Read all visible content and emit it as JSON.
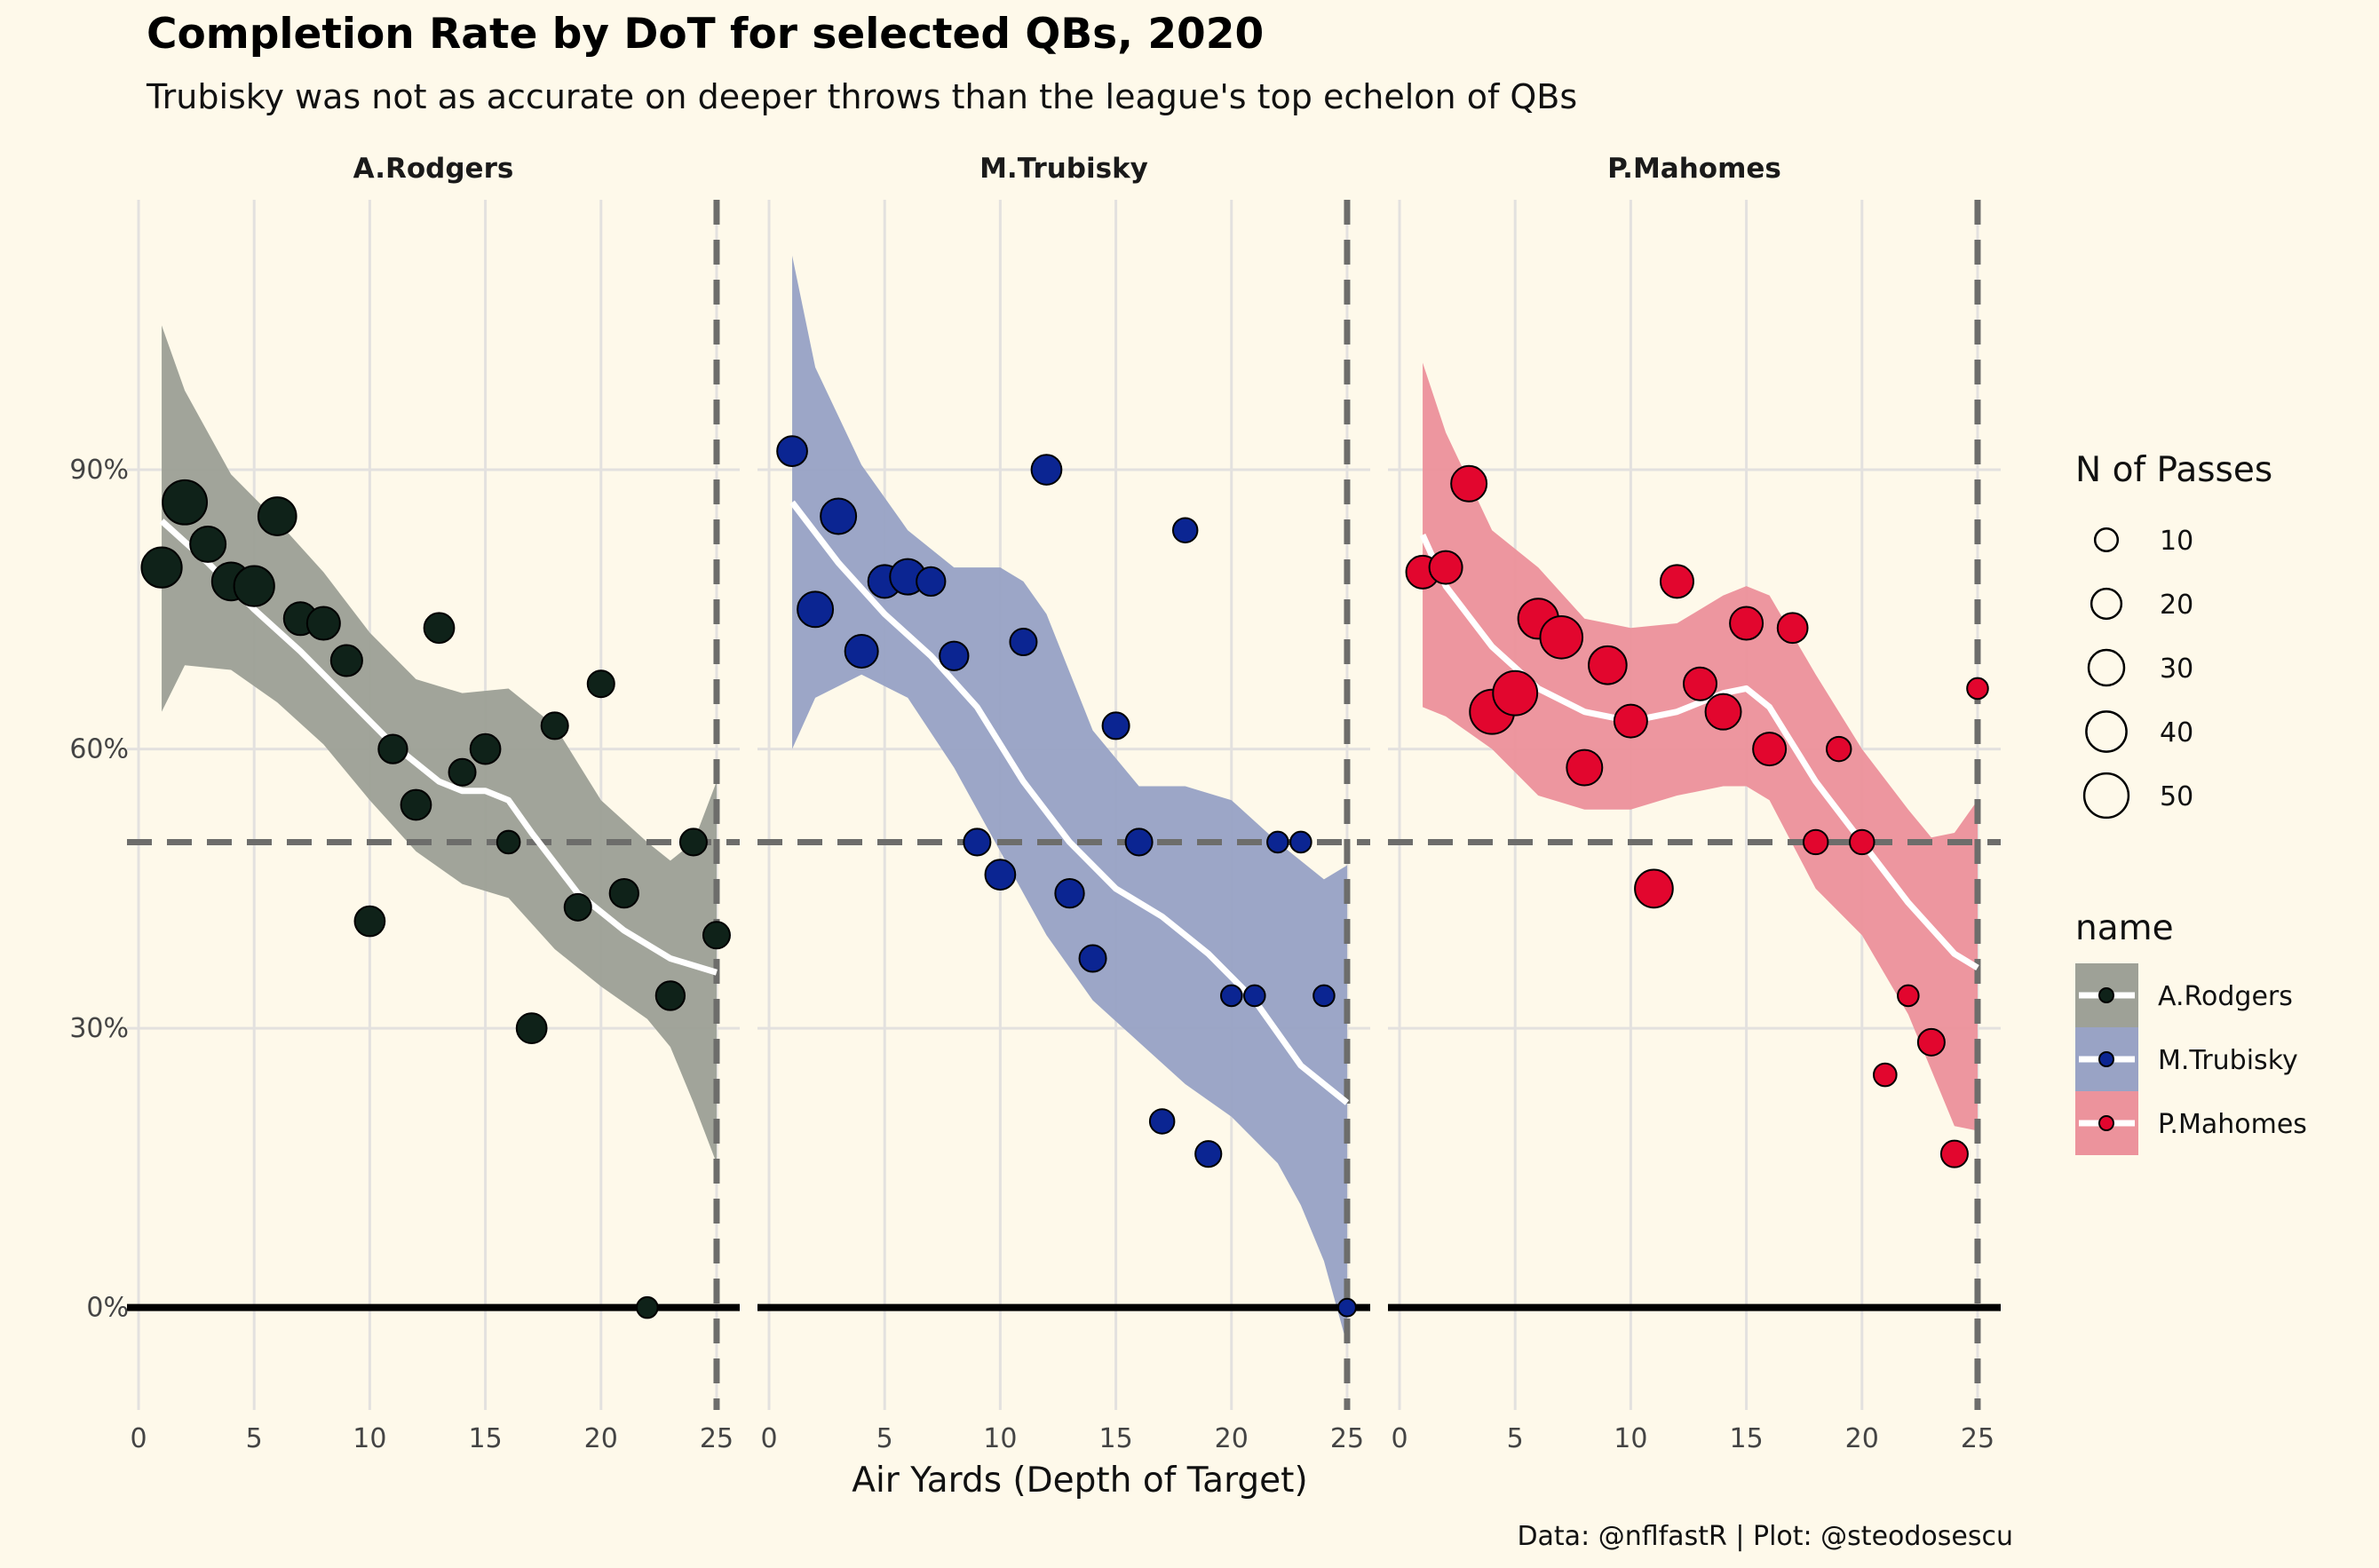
{
  "chart_data": {
    "type": "scatter",
    "title": "Completion Rate by DoT for selected QBs, 2020",
    "subtitle": "Trubisky was not as accurate on deeper throws than the league's top echelon of QBs",
    "xlabel": "Air Yards (Depth of Target)",
    "ylabel": "",
    "caption": "Data: @nflfastR | Plot: @steodosescu",
    "xlim": [
      -0.5,
      26
    ],
    "ylim": [
      -0.11,
      1.19
    ],
    "x_ticks": [
      0,
      5,
      10,
      15,
      20,
      25
    ],
    "x_tick_labels": [
      "0",
      "5",
      "10",
      "15",
      "20",
      "25"
    ],
    "y_ticks": [
      0,
      0.3,
      0.6,
      0.9
    ],
    "y_tick_labels": [
      "0%",
      "30%",
      "60%",
      "90%"
    ],
    "reference_lines": {
      "horizontal": 0.5,
      "vertical": 25,
      "baseline": 0
    },
    "grid": true,
    "size_legend": {
      "title": "N of Passes",
      "values": [
        10,
        20,
        30,
        40,
        50
      ],
      "labels": [
        "10",
        "20",
        "30",
        "40",
        "50"
      ]
    },
    "color_legend": {
      "title": "name",
      "entries": [
        "A.Rodgers",
        "M.Trubisky",
        "P.Mahomes"
      ]
    },
    "series": [
      {
        "name": "A.Rodgers",
        "fill": "#0f2219",
        "band_color": "#9ea197",
        "points": [
          {
            "x": 1,
            "y": 0.795,
            "n": 40
          },
          {
            "x": 2,
            "y": 0.865,
            "n": 50
          },
          {
            "x": 3,
            "y": 0.82,
            "n": 30
          },
          {
            "x": 4,
            "y": 0.78,
            "n": 35
          },
          {
            "x": 5,
            "y": 0.775,
            "n": 40
          },
          {
            "x": 6,
            "y": 0.85,
            "n": 35
          },
          {
            "x": 7,
            "y": 0.74,
            "n": 25
          },
          {
            "x": 8,
            "y": 0.735,
            "n": 25
          },
          {
            "x": 9,
            "y": 0.695,
            "n": 22
          },
          {
            "x": 10,
            "y": 0.415,
            "n": 20
          },
          {
            "x": 11,
            "y": 0.6,
            "n": 18
          },
          {
            "x": 12,
            "y": 0.54,
            "n": 20
          },
          {
            "x": 13,
            "y": 0.73,
            "n": 20
          },
          {
            "x": 14,
            "y": 0.575,
            "n": 15
          },
          {
            "x": 15,
            "y": 0.6,
            "n": 20
          },
          {
            "x": 16,
            "y": 0.5,
            "n": 10
          },
          {
            "x": 17,
            "y": 0.3,
            "n": 20
          },
          {
            "x": 18,
            "y": 0.625,
            "n": 15
          },
          {
            "x": 19,
            "y": 0.43,
            "n": 15
          },
          {
            "x": 20,
            "y": 0.67,
            "n": 15
          },
          {
            "x": 21,
            "y": 0.445,
            "n": 18
          },
          {
            "x": 22,
            "y": 0.0,
            "n": 8
          },
          {
            "x": 23,
            "y": 0.335,
            "n": 18
          },
          {
            "x": 24,
            "y": 0.5,
            "n": 15
          },
          {
            "x": 25,
            "y": 0.4,
            "n": 15
          }
        ],
        "smooth": [
          {
            "x": 1,
            "y": 0.845
          },
          {
            "x": 3,
            "y": 0.8
          },
          {
            "x": 5,
            "y": 0.75
          },
          {
            "x": 7,
            "y": 0.705
          },
          {
            "x": 9,
            "y": 0.655
          },
          {
            "x": 11,
            "y": 0.605
          },
          {
            "x": 13,
            "y": 0.565
          },
          {
            "x": 14,
            "y": 0.555
          },
          {
            "x": 15,
            "y": 0.555
          },
          {
            "x": 16,
            "y": 0.545
          },
          {
            "x": 17,
            "y": 0.51
          },
          {
            "x": 19,
            "y": 0.445
          },
          {
            "x": 21,
            "y": 0.405
          },
          {
            "x": 23,
            "y": 0.375
          },
          {
            "x": 25,
            "y": 0.36
          }
        ],
        "band_upper": [
          {
            "x": 1,
            "y": 1.055
          },
          {
            "x": 2,
            "y": 0.985
          },
          {
            "x": 4,
            "y": 0.895
          },
          {
            "x": 6,
            "y": 0.845
          },
          {
            "x": 8,
            "y": 0.79
          },
          {
            "x": 10,
            "y": 0.725
          },
          {
            "x": 12,
            "y": 0.675
          },
          {
            "x": 14,
            "y": 0.66
          },
          {
            "x": 16,
            "y": 0.665
          },
          {
            "x": 18,
            "y": 0.625
          },
          {
            "x": 20,
            "y": 0.545
          },
          {
            "x": 22,
            "y": 0.5
          },
          {
            "x": 23,
            "y": 0.48
          },
          {
            "x": 24,
            "y": 0.5
          },
          {
            "x": 25,
            "y": 0.565
          }
        ],
        "band_lower": [
          {
            "x": 1,
            "y": 0.64
          },
          {
            "x": 2,
            "y": 0.69
          },
          {
            "x": 4,
            "y": 0.685
          },
          {
            "x": 6,
            "y": 0.65
          },
          {
            "x": 8,
            "y": 0.605
          },
          {
            "x": 10,
            "y": 0.545
          },
          {
            "x": 12,
            "y": 0.49
          },
          {
            "x": 14,
            "y": 0.455
          },
          {
            "x": 16,
            "y": 0.44
          },
          {
            "x": 18,
            "y": 0.385
          },
          {
            "x": 20,
            "y": 0.345
          },
          {
            "x": 22,
            "y": 0.31
          },
          {
            "x": 23,
            "y": 0.28
          },
          {
            "x": 24,
            "y": 0.22
          },
          {
            "x": 25,
            "y": 0.155
          }
        ]
      },
      {
        "name": "M.Trubisky",
        "fill": "#0b2592",
        "band_color": "#99a3c5",
        "points": [
          {
            "x": 1,
            "y": 0.92,
            "n": 20
          },
          {
            "x": 2,
            "y": 0.75,
            "n": 30
          },
          {
            "x": 3,
            "y": 0.85,
            "n": 30
          },
          {
            "x": 4,
            "y": 0.705,
            "n": 25
          },
          {
            "x": 5,
            "y": 0.78,
            "n": 25
          },
          {
            "x": 6,
            "y": 0.785,
            "n": 30
          },
          {
            "x": 7,
            "y": 0.78,
            "n": 18
          },
          {
            "x": 8,
            "y": 0.7,
            "n": 18
          },
          {
            "x": 9,
            "y": 0.5,
            "n": 15
          },
          {
            "x": 10,
            "y": 0.465,
            "n": 20
          },
          {
            "x": 11,
            "y": 0.715,
            "n": 15
          },
          {
            "x": 12,
            "y": 0.9,
            "n": 20
          },
          {
            "x": 13,
            "y": 0.445,
            "n": 18
          },
          {
            "x": 14,
            "y": 0.375,
            "n": 15
          },
          {
            "x": 15,
            "y": 0.625,
            "n": 15
          },
          {
            "x": 16,
            "y": 0.5,
            "n": 15
          },
          {
            "x": 17,
            "y": 0.2,
            "n": 12
          },
          {
            "x": 18,
            "y": 0.835,
            "n": 12
          },
          {
            "x": 19,
            "y": 0.165,
            "n": 14
          },
          {
            "x": 20,
            "y": 0.335,
            "n": 8
          },
          {
            "x": 21,
            "y": 0.335,
            "n": 8
          },
          {
            "x": 22,
            "y": 0.5,
            "n": 8
          },
          {
            "x": 23,
            "y": 0.5,
            "n": 8
          },
          {
            "x": 24,
            "y": 0.335,
            "n": 8
          },
          {
            "x": 25,
            "y": 0.0,
            "n": 5
          }
        ],
        "smooth": [
          {
            "x": 1,
            "y": 0.865
          },
          {
            "x": 3,
            "y": 0.8
          },
          {
            "x": 5,
            "y": 0.745
          },
          {
            "x": 7,
            "y": 0.7
          },
          {
            "x": 9,
            "y": 0.645
          },
          {
            "x": 11,
            "y": 0.565
          },
          {
            "x": 13,
            "y": 0.5
          },
          {
            "x": 15,
            "y": 0.45
          },
          {
            "x": 17,
            "y": 0.42
          },
          {
            "x": 19,
            "y": 0.38
          },
          {
            "x": 21,
            "y": 0.33
          },
          {
            "x": 23,
            "y": 0.26
          },
          {
            "x": 25,
            "y": 0.22
          }
        ],
        "band_upper": [
          {
            "x": 1,
            "y": 1.13
          },
          {
            "x": 2,
            "y": 1.01
          },
          {
            "x": 4,
            "y": 0.905
          },
          {
            "x": 6,
            "y": 0.835
          },
          {
            "x": 8,
            "y": 0.795
          },
          {
            "x": 10,
            "y": 0.795
          },
          {
            "x": 11,
            "y": 0.78
          },
          {
            "x": 12,
            "y": 0.745
          },
          {
            "x": 14,
            "y": 0.62
          },
          {
            "x": 16,
            "y": 0.56
          },
          {
            "x": 18,
            "y": 0.56
          },
          {
            "x": 20,
            "y": 0.545
          },
          {
            "x": 22,
            "y": 0.5
          },
          {
            "x": 24,
            "y": 0.46
          },
          {
            "x": 25,
            "y": 0.475
          }
        ],
        "band_lower": [
          {
            "x": 1,
            "y": 0.6
          },
          {
            "x": 2,
            "y": 0.655
          },
          {
            "x": 4,
            "y": 0.68
          },
          {
            "x": 6,
            "y": 0.655
          },
          {
            "x": 8,
            "y": 0.58
          },
          {
            "x": 10,
            "y": 0.49
          },
          {
            "x": 12,
            "y": 0.4
          },
          {
            "x": 14,
            "y": 0.33
          },
          {
            "x": 16,
            "y": 0.285
          },
          {
            "x": 18,
            "y": 0.24
          },
          {
            "x": 20,
            "y": 0.205
          },
          {
            "x": 22,
            "y": 0.155
          },
          {
            "x": 23,
            "y": 0.11
          },
          {
            "x": 24,
            "y": 0.05
          },
          {
            "x": 25,
            "y": -0.04
          }
        ]
      },
      {
        "name": "P.Mahomes",
        "fill": "#e2062e",
        "band_color": "#ec939c",
        "points": [
          {
            "x": 1,
            "y": 0.79,
            "n": 25
          },
          {
            "x": 2,
            "y": 0.795,
            "n": 25
          },
          {
            "x": 3,
            "y": 0.885,
            "n": 30
          },
          {
            "x": 4,
            "y": 0.64,
            "n": 50
          },
          {
            "x": 5,
            "y": 0.66,
            "n": 50
          },
          {
            "x": 6,
            "y": 0.74,
            "n": 40
          },
          {
            "x": 7,
            "y": 0.72,
            "n": 45
          },
          {
            "x": 8,
            "y": 0.58,
            "n": 30
          },
          {
            "x": 9,
            "y": 0.69,
            "n": 35
          },
          {
            "x": 10,
            "y": 0.63,
            "n": 25
          },
          {
            "x": 11,
            "y": 0.45,
            "n": 35
          },
          {
            "x": 12,
            "y": 0.78,
            "n": 25
          },
          {
            "x": 13,
            "y": 0.67,
            "n": 25
          },
          {
            "x": 14,
            "y": 0.64,
            "n": 30
          },
          {
            "x": 15,
            "y": 0.735,
            "n": 25
          },
          {
            "x": 16,
            "y": 0.6,
            "n": 25
          },
          {
            "x": 17,
            "y": 0.73,
            "n": 20
          },
          {
            "x": 18,
            "y": 0.5,
            "n": 12
          },
          {
            "x": 19,
            "y": 0.6,
            "n": 12
          },
          {
            "x": 20,
            "y": 0.5,
            "n": 12
          },
          {
            "x": 21,
            "y": 0.25,
            "n": 10
          },
          {
            "x": 22,
            "y": 0.335,
            "n": 8
          },
          {
            "x": 23,
            "y": 0.285,
            "n": 15
          },
          {
            "x": 24,
            "y": 0.165,
            "n": 15
          },
          {
            "x": 25,
            "y": 0.665,
            "n": 8
          }
        ],
        "smooth": [
          {
            "x": 1,
            "y": 0.83
          },
          {
            "x": 2,
            "y": 0.775
          },
          {
            "x": 4,
            "y": 0.71
          },
          {
            "x": 6,
            "y": 0.665
          },
          {
            "x": 8,
            "y": 0.64
          },
          {
            "x": 10,
            "y": 0.63
          },
          {
            "x": 12,
            "y": 0.64
          },
          {
            "x": 14,
            "y": 0.66
          },
          {
            "x": 15,
            "y": 0.665
          },
          {
            "x": 16,
            "y": 0.645
          },
          {
            "x": 18,
            "y": 0.565
          },
          {
            "x": 20,
            "y": 0.5
          },
          {
            "x": 22,
            "y": 0.435
          },
          {
            "x": 24,
            "y": 0.38
          },
          {
            "x": 25,
            "y": 0.365
          }
        ],
        "band_upper": [
          {
            "x": 1,
            "y": 1.015
          },
          {
            "x": 2,
            "y": 0.94
          },
          {
            "x": 4,
            "y": 0.835
          },
          {
            "x": 6,
            "y": 0.795
          },
          {
            "x": 8,
            "y": 0.74
          },
          {
            "x": 10,
            "y": 0.73
          },
          {
            "x": 12,
            "y": 0.735
          },
          {
            "x": 14,
            "y": 0.765
          },
          {
            "x": 15,
            "y": 0.775
          },
          {
            "x": 16,
            "y": 0.765
          },
          {
            "x": 18,
            "y": 0.68
          },
          {
            "x": 20,
            "y": 0.6
          },
          {
            "x": 22,
            "y": 0.535
          },
          {
            "x": 23,
            "y": 0.505
          },
          {
            "x": 24,
            "y": 0.51
          },
          {
            "x": 25,
            "y": 0.545
          }
        ],
        "band_lower": [
          {
            "x": 1,
            "y": 0.645
          },
          {
            "x": 2,
            "y": 0.635
          },
          {
            "x": 4,
            "y": 0.6
          },
          {
            "x": 6,
            "y": 0.55
          },
          {
            "x": 8,
            "y": 0.535
          },
          {
            "x": 10,
            "y": 0.535
          },
          {
            "x": 12,
            "y": 0.55
          },
          {
            "x": 14,
            "y": 0.56
          },
          {
            "x": 15,
            "y": 0.56
          },
          {
            "x": 16,
            "y": 0.545
          },
          {
            "x": 18,
            "y": 0.45
          },
          {
            "x": 20,
            "y": 0.4
          },
          {
            "x": 22,
            "y": 0.315
          },
          {
            "x": 23,
            "y": 0.255
          },
          {
            "x": 24,
            "y": 0.195
          },
          {
            "x": 25,
            "y": 0.19
          }
        ]
      }
    ]
  }
}
